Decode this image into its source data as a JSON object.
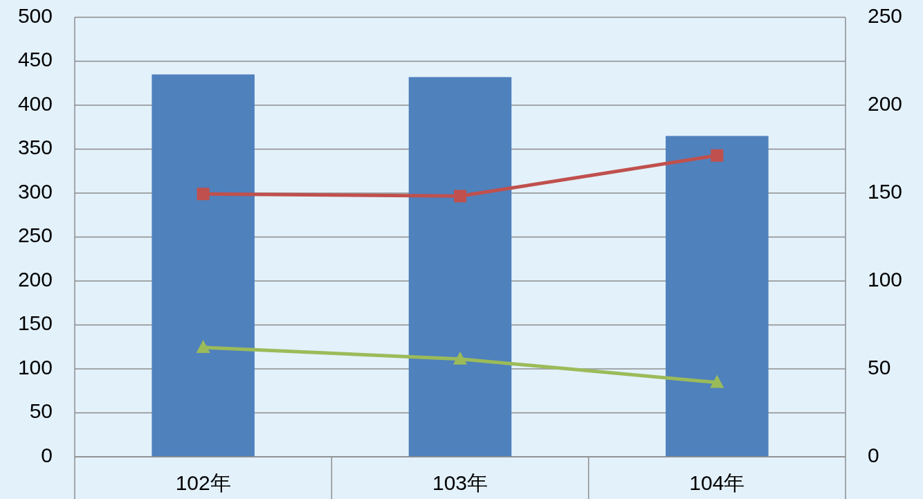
{
  "chart_data": {
    "type": "bar",
    "categories": [
      "102年",
      "103年",
      "104年"
    ],
    "series": [
      {
        "color": "#4f81bd",
        "values": [
          435,
          432,
          365
        ]
      },
      {
        "type": "line",
        "axis": "y2",
        "color": "#c0504d",
        "marker": "square",
        "values": [
          149.5,
          148.3,
          171.4
        ]
      },
      {
        "type": "line",
        "axis": "y2",
        "color": "#9bbb59",
        "marker": "triangle",
        "values": [
          62.2,
          55.6,
          42.3
        ]
      }
    ],
    "ylim": [
      0,
      500
    ],
    "yticks": [
      0,
      50,
      100,
      150,
      200,
      250,
      300,
      350,
      400,
      450,
      500
    ],
    "y2lim": [
      0,
      250
    ],
    "y2ticks": [
      0,
      50,
      100,
      150,
      200,
      250
    ],
    "grid": "y"
  }
}
